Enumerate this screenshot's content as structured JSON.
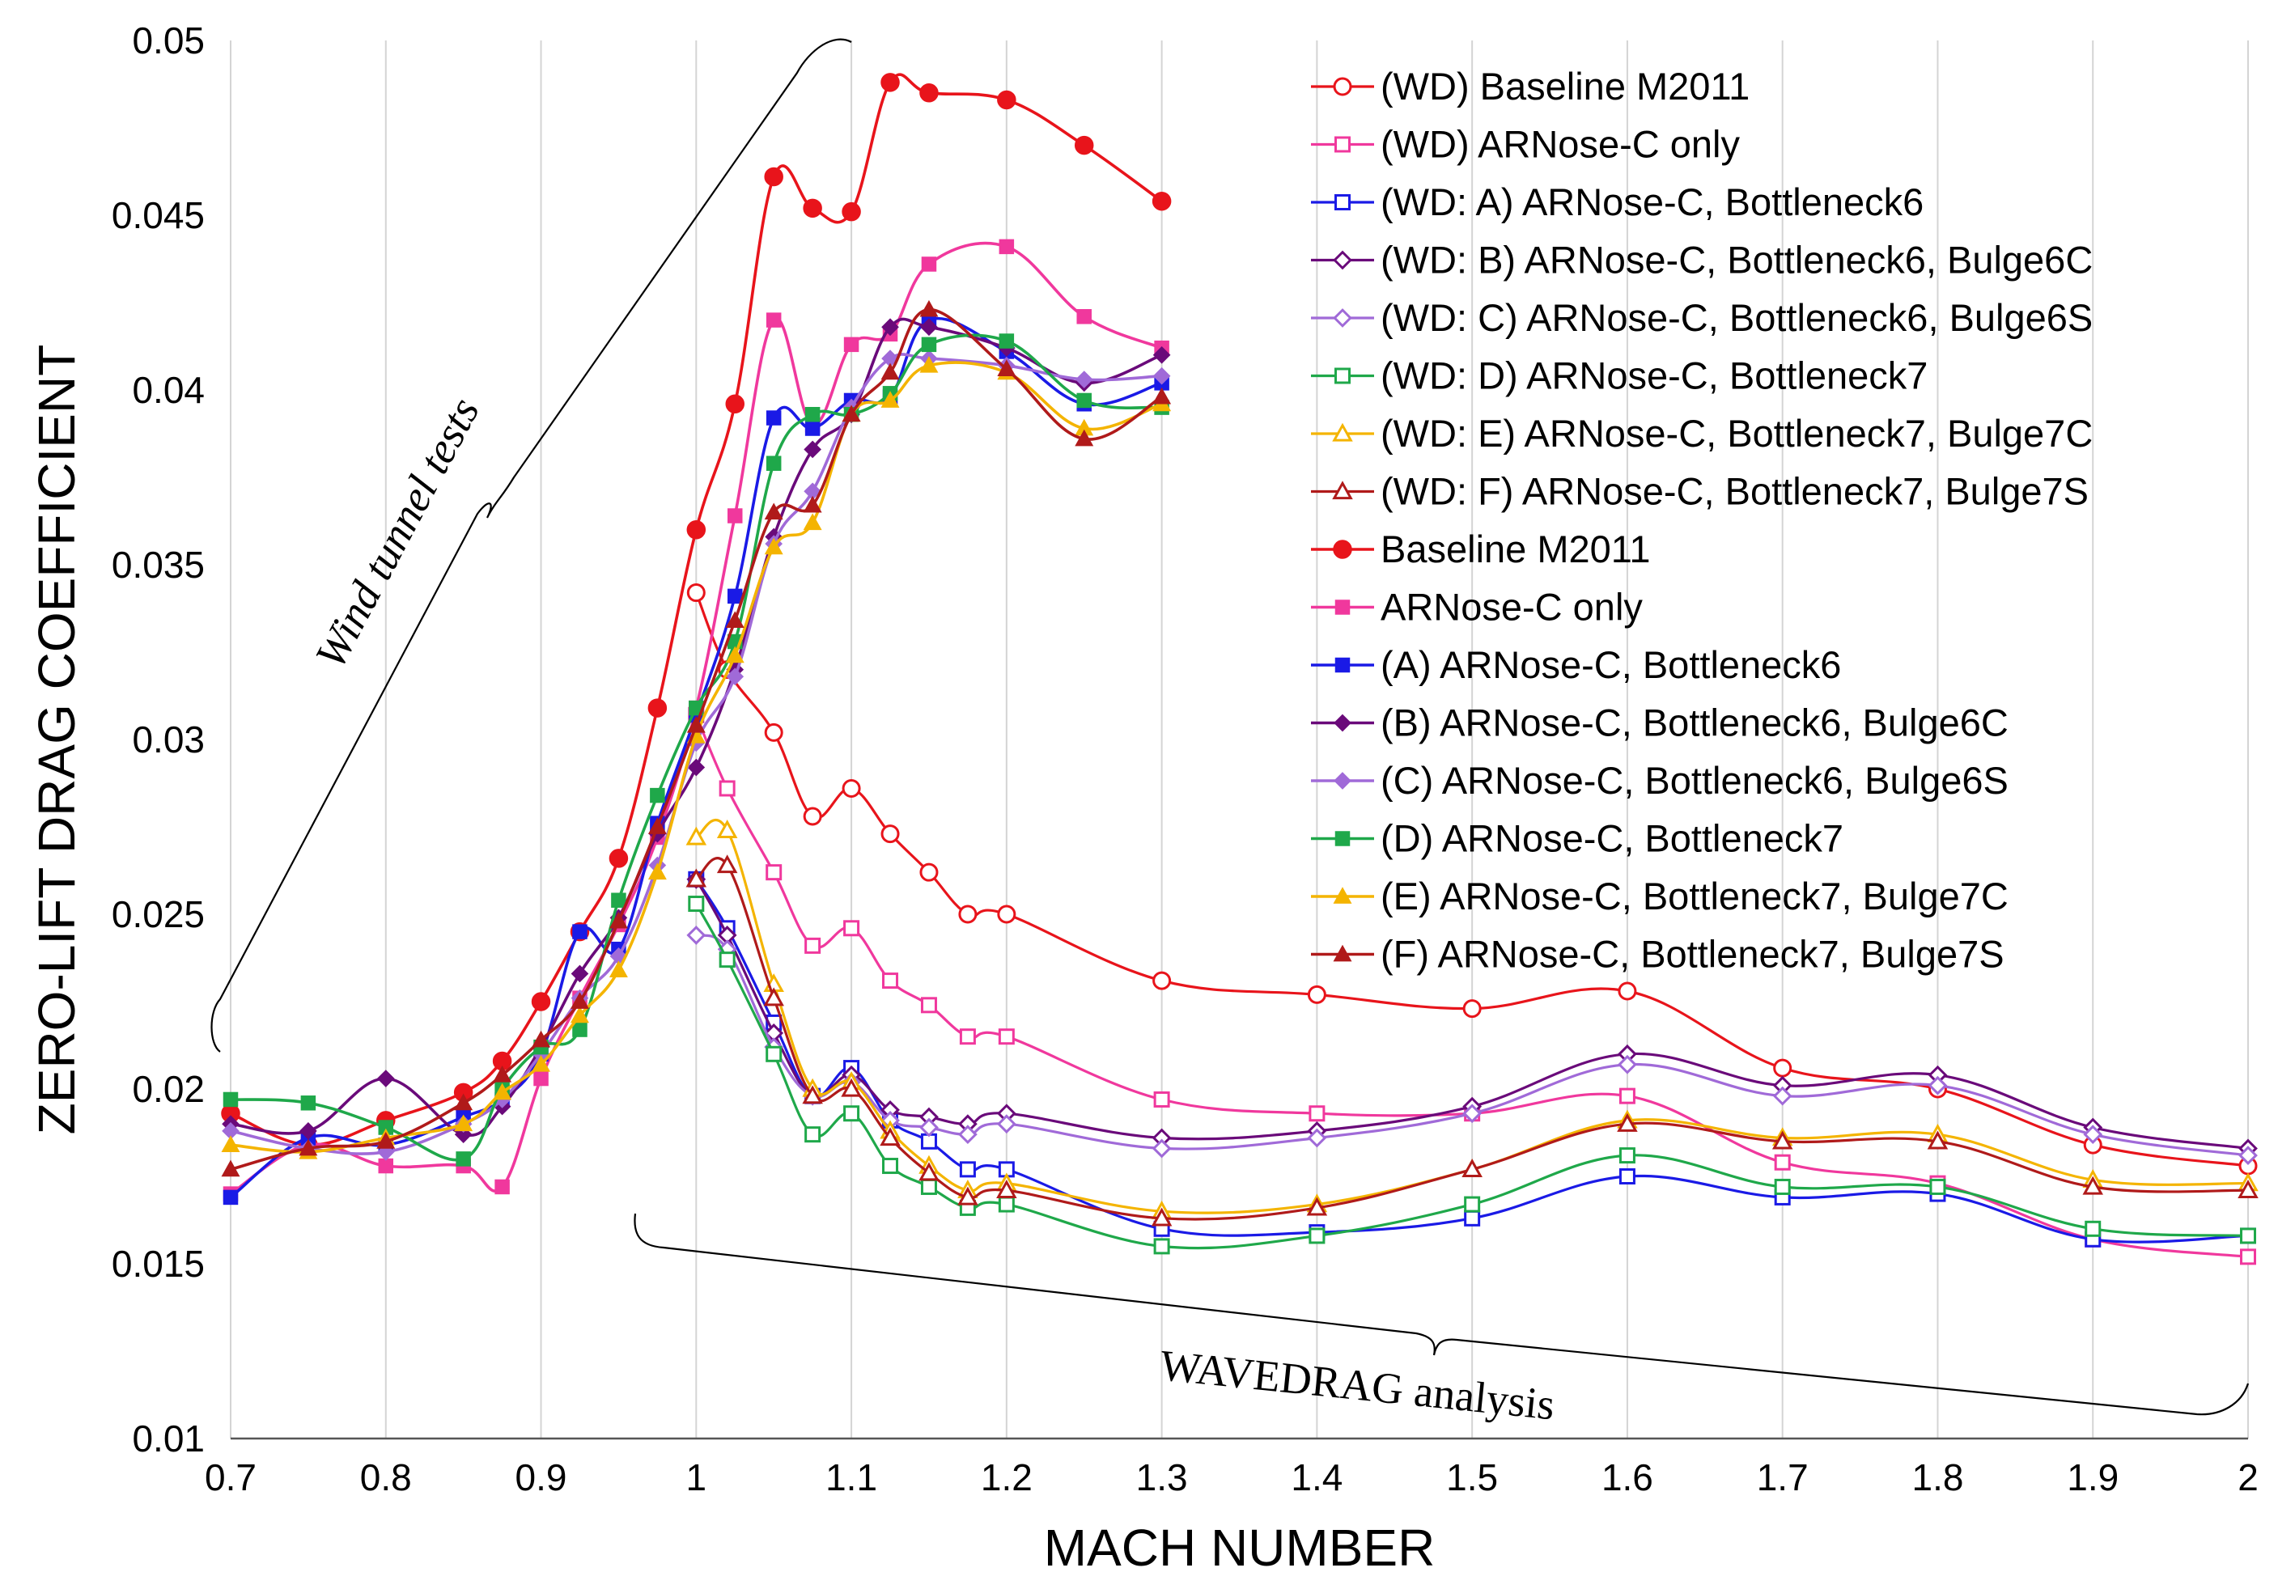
{
  "chart_data": {
    "type": "line",
    "title": "",
    "xlabel": "MACH NUMBER",
    "ylabel": "ZERO-LIFT DRAG COEFFICIENT",
    "xlim": [
      0.7,
      2.0
    ],
    "ylim": [
      0.01,
      0.05
    ],
    "x_ticks": [
      "0.7",
      "0.8",
      "0.9",
      "1",
      "1.1",
      "1.2",
      "1.3",
      "1.4",
      "1.5",
      "1.6",
      "1.7",
      "1.8",
      "1.9",
      "2"
    ],
    "y_ticks": [
      "0.01",
      "0.015",
      "0.02",
      "0.025",
      "0.03",
      "0.035",
      "0.04",
      "0.045",
      "0.05"
    ],
    "grid": "vertical",
    "legend_position": "top-right",
    "annotations": {
      "wind_tunnel": "Wind tunnel tests",
      "wavedrag": "WAVEDRAG analysis"
    },
    "series": [
      {
        "name": "(WD) Baseline M2011",
        "color": "#e8141b",
        "marker": "circle",
        "filled": false,
        "x": [
          1.0,
          1.02,
          1.05,
          1.075,
          1.1,
          1.125,
          1.15,
          1.175,
          1.2,
          1.3,
          1.4,
          1.5,
          1.6,
          1.7,
          1.8,
          1.9,
          2.0
        ],
        "y": [
          0.0342,
          0.032,
          0.0302,
          0.0278,
          0.0286,
          0.0273,
          0.0262,
          0.025,
          0.025,
          0.0231,
          0.0227,
          0.0223,
          0.0228,
          0.0206,
          0.02,
          0.0184,
          0.0178
        ]
      },
      {
        "name": "(WD) ARNose-C only",
        "color": "#f0389d",
        "marker": "square",
        "filled": false,
        "x": [
          1.0,
          1.02,
          1.05,
          1.075,
          1.1,
          1.125,
          1.15,
          1.175,
          1.2,
          1.3,
          1.4,
          1.5,
          1.6,
          1.7,
          1.8,
          1.9,
          2.0
        ],
        "y": [
          0.0307,
          0.0286,
          0.0262,
          0.0241,
          0.0246,
          0.0231,
          0.0224,
          0.0215,
          0.0215,
          0.0197,
          0.0193,
          0.0193,
          0.0198,
          0.0179,
          0.0173,
          0.0157,
          0.0152
        ]
      },
      {
        "name": "(WD: A) ARNose-C, Bottleneck6",
        "color": "#1a1ae6",
        "marker": "square",
        "filled": false,
        "x": [
          1.0,
          1.02,
          1.05,
          1.075,
          1.1,
          1.125,
          1.15,
          1.175,
          1.2,
          1.3,
          1.4,
          1.5,
          1.6,
          1.7,
          1.8,
          1.9,
          2.0
        ],
        "y": [
          0.026,
          0.0246,
          0.0219,
          0.0198,
          0.0206,
          0.0191,
          0.0185,
          0.0177,
          0.0177,
          0.016,
          0.0159,
          0.0163,
          0.0175,
          0.0169,
          0.017,
          0.0157,
          0.0158
        ]
      },
      {
        "name": "(WD: B) ARNose-C, Bottleneck6, Bulge6C",
        "color": "#6a0a7a",
        "marker": "diamond",
        "filled": false,
        "x": [
          1.0,
          1.02,
          1.05,
          1.075,
          1.1,
          1.125,
          1.15,
          1.175,
          1.2,
          1.3,
          1.4,
          1.5,
          1.6,
          1.7,
          1.8,
          1.9,
          2.0
        ],
        "y": [
          0.026,
          0.0244,
          0.0216,
          0.0198,
          0.0204,
          0.0194,
          0.0192,
          0.019,
          0.0193,
          0.0186,
          0.0188,
          0.0195,
          0.021,
          0.0201,
          0.0204,
          0.0189,
          0.0183
        ]
      },
      {
        "name": "(WD: C) ARNose-C, Bottleneck6, Bulge6S",
        "color": "#a06ad8",
        "marker": "diamond",
        "filled": false,
        "x": [
          1.0,
          1.02,
          1.05,
          1.075,
          1.1,
          1.125,
          1.15,
          1.175,
          1.2,
          1.3,
          1.4,
          1.5,
          1.6,
          1.7,
          1.8,
          1.9,
          2.0
        ],
        "y": [
          0.0244,
          0.024,
          0.0212,
          0.0198,
          0.0202,
          0.0191,
          0.0189,
          0.0187,
          0.019,
          0.0183,
          0.0186,
          0.0193,
          0.0207,
          0.0198,
          0.0201,
          0.0187,
          0.0181
        ]
      },
      {
        "name": "(WD: D) ARNose-C, Bottleneck7",
        "color": "#1fa84a",
        "marker": "square",
        "filled": false,
        "x": [
          1.0,
          1.02,
          1.05,
          1.075,
          1.1,
          1.125,
          1.15,
          1.175,
          1.2,
          1.3,
          1.4,
          1.5,
          1.6,
          1.7,
          1.8,
          1.9,
          2.0
        ],
        "y": [
          0.0253,
          0.0237,
          0.021,
          0.0187,
          0.0193,
          0.0178,
          0.0172,
          0.0166,
          0.0167,
          0.0155,
          0.0158,
          0.0167,
          0.0181,
          0.0172,
          0.0172,
          0.016,
          0.0158
        ]
      },
      {
        "name": "(WD: E) ARNose-C, Bottleneck7, Bulge7C",
        "color": "#f4b400",
        "marker": "triangle",
        "filled": false,
        "x": [
          1.0,
          1.02,
          1.05,
          1.075,
          1.1,
          1.125,
          1.15,
          1.175,
          1.2,
          1.3,
          1.4,
          1.5,
          1.6,
          1.7,
          1.8,
          1.9,
          2.0
        ],
        "y": [
          0.0272,
          0.0274,
          0.023,
          0.02,
          0.0202,
          0.0188,
          0.0178,
          0.0171,
          0.0173,
          0.0165,
          0.0167,
          0.0177,
          0.0191,
          0.0186,
          0.0187,
          0.0174,
          0.0173
        ]
      },
      {
        "name": "(WD: F) ARNose-C, Bottleneck7, Bulge7S",
        "color": "#b01a1a",
        "marker": "triangle",
        "filled": false,
        "x": [
          1.0,
          1.02,
          1.05,
          1.075,
          1.1,
          1.125,
          1.15,
          1.175,
          1.2,
          1.3,
          1.4,
          1.5,
          1.6,
          1.7,
          1.8,
          1.9,
          2.0
        ],
        "y": [
          0.026,
          0.0264,
          0.0226,
          0.0198,
          0.02,
          0.0186,
          0.0176,
          0.0169,
          0.0171,
          0.0163,
          0.0166,
          0.0177,
          0.019,
          0.0185,
          0.0185,
          0.0172,
          0.0171
        ]
      },
      {
        "name": "Baseline M2011",
        "color": "#e8141b",
        "marker": "circle",
        "filled": true,
        "x": [
          0.7,
          0.75,
          0.8,
          0.85,
          0.875,
          0.9,
          0.925,
          0.95,
          0.975,
          1.0,
          1.025,
          1.05,
          1.075,
          1.1,
          1.125,
          1.15,
          1.2,
          1.25,
          1.3
        ],
        "y": [
          0.0193,
          0.0184,
          0.0191,
          0.0199,
          0.0208,
          0.0225,
          0.0245,
          0.0266,
          0.0309,
          0.036,
          0.0396,
          0.0461,
          0.0452,
          0.0451,
          0.0488,
          0.0485,
          0.0483,
          0.047,
          0.0454
        ]
      },
      {
        "name": "ARNose-C only",
        "color": "#f0389d",
        "marker": "square",
        "filled": true,
        "x": [
          0.7,
          0.75,
          0.8,
          0.85,
          0.875,
          0.9,
          0.925,
          0.95,
          0.975,
          1.0,
          1.025,
          1.05,
          1.075,
          1.1,
          1.125,
          1.15,
          1.2,
          1.25,
          1.3
        ],
        "y": [
          0.017,
          0.0184,
          0.0178,
          0.0178,
          0.0172,
          0.0203,
          0.0226,
          0.0247,
          0.0272,
          0.0309,
          0.0364,
          0.042,
          0.039,
          0.0413,
          0.0416,
          0.0436,
          0.0441,
          0.0421,
          0.0412
        ]
      },
      {
        "name": "(A) ARNose-C, Bottleneck6",
        "color": "#1a1ae6",
        "marker": "square",
        "filled": true,
        "x": [
          0.7,
          0.75,
          0.8,
          0.85,
          0.875,
          0.9,
          0.925,
          0.95,
          0.975,
          1.0,
          1.025,
          1.05,
          1.075,
          1.1,
          1.125,
          1.15,
          1.2,
          1.25,
          1.3
        ],
        "y": [
          0.0169,
          0.0186,
          0.0184,
          0.0192,
          0.0197,
          0.021,
          0.0245,
          0.024,
          0.0276,
          0.0307,
          0.0341,
          0.0392,
          0.0389,
          0.0397,
          0.0398,
          0.042,
          0.0411,
          0.0396,
          0.0402
        ]
      },
      {
        "name": "(B) ARNose-C, Bottleneck6, Bulge6C",
        "color": "#6a0a7a",
        "marker": "diamond",
        "filled": true,
        "x": [
          0.7,
          0.75,
          0.8,
          0.85,
          0.875,
          0.9,
          0.925,
          0.95,
          0.975,
          1.0,
          1.025,
          1.05,
          1.075,
          1.1,
          1.125,
          1.15,
          1.2,
          1.25,
          1.3
        ],
        "y": [
          0.019,
          0.0188,
          0.0203,
          0.0187,
          0.0195,
          0.0212,
          0.0233,
          0.0249,
          0.0273,
          0.0292,
          0.032,
          0.0358,
          0.0383,
          0.0393,
          0.0418,
          0.0418,
          0.0412,
          0.0402,
          0.041
        ]
      },
      {
        "name": "(C) ARNose-C, Bottleneck6, Bulge6S",
        "color": "#a06ad8",
        "marker": "diamond",
        "filled": true,
        "x": [
          0.7,
          0.75,
          0.8,
          0.85,
          0.875,
          0.9,
          0.925,
          0.95,
          0.975,
          1.0,
          1.025,
          1.05,
          1.075,
          1.1,
          1.125,
          1.15,
          1.2,
          1.25,
          1.3
        ],
        "y": [
          0.0188,
          0.0183,
          0.0182,
          0.019,
          0.0197,
          0.021,
          0.0226,
          0.0238,
          0.0264,
          0.0299,
          0.0318,
          0.0356,
          0.0371,
          0.0395,
          0.0409,
          0.0409,
          0.0407,
          0.0403,
          0.0404
        ]
      },
      {
        "name": "(D) ARNose-C, Bottleneck7",
        "color": "#1fa84a",
        "marker": "square",
        "filled": true,
        "x": [
          0.7,
          0.75,
          0.8,
          0.85,
          0.875,
          0.9,
          0.925,
          0.95,
          0.975,
          1.0,
          1.025,
          1.05,
          1.075,
          1.1,
          1.125,
          1.15,
          1.2,
          1.25,
          1.3
        ],
        "y": [
          0.0197,
          0.0196,
          0.0189,
          0.018,
          0.02,
          0.0212,
          0.0217,
          0.0254,
          0.0284,
          0.0309,
          0.0328,
          0.0379,
          0.0393,
          0.0393,
          0.0399,
          0.0413,
          0.0414,
          0.0397,
          0.0395
        ]
      },
      {
        "name": "(E) ARNose-C, Bottleneck7, Bulge7C",
        "color": "#f4b400",
        "marker": "triangle",
        "filled": true,
        "x": [
          0.7,
          0.75,
          0.8,
          0.85,
          0.875,
          0.9,
          0.925,
          0.95,
          0.975,
          1.0,
          1.025,
          1.05,
          1.075,
          1.1,
          1.125,
          1.15,
          1.2,
          1.25,
          1.3
        ],
        "y": [
          0.0184,
          0.0182,
          0.0186,
          0.019,
          0.0199,
          0.0207,
          0.0221,
          0.0234,
          0.0262,
          0.0301,
          0.0324,
          0.0355,
          0.0362,
          0.0393,
          0.0397,
          0.0407,
          0.0405,
          0.0389,
          0.0396
        ]
      },
      {
        "name": "(F) ARNose-C, Bottleneck7, Bulge7S",
        "color": "#b01a1a",
        "marker": "triangle",
        "filled": true,
        "x": [
          0.7,
          0.75,
          0.8,
          0.85,
          0.875,
          0.9,
          0.925,
          0.95,
          0.975,
          1.0,
          1.025,
          1.05,
          1.075,
          1.1,
          1.125,
          1.15,
          1.2,
          1.25,
          1.3
        ],
        "y": [
          0.0177,
          0.0183,
          0.0185,
          0.0196,
          0.0204,
          0.0214,
          0.0225,
          0.0248,
          0.0275,
          0.0304,
          0.0334,
          0.0365,
          0.0367,
          0.0393,
          0.0405,
          0.0423,
          0.0406,
          0.0386,
          0.0398
        ]
      }
    ]
  }
}
